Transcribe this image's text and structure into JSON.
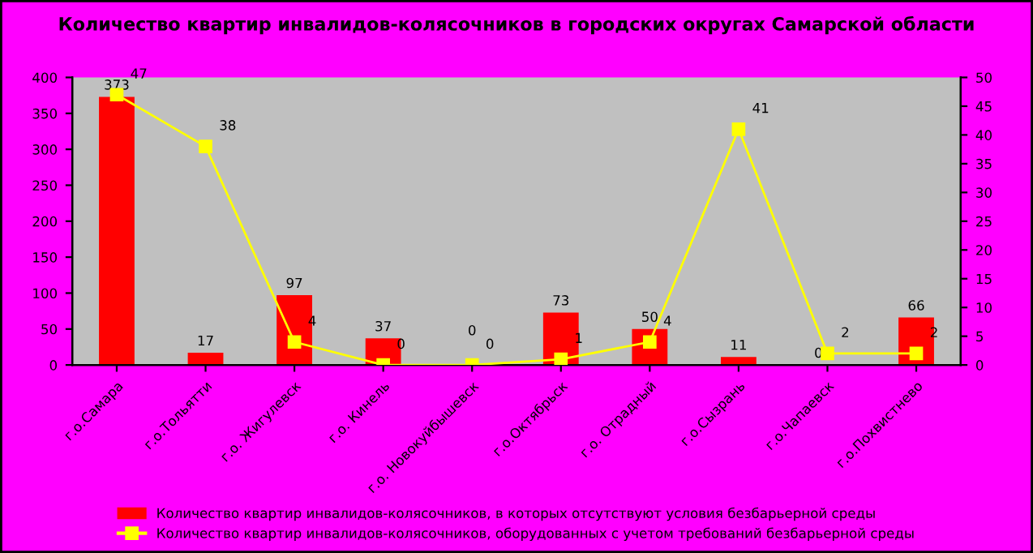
{
  "chart_data": {
    "type": "bar",
    "title": "Количество квартир инвалидов-колясочников в городских округах Самарской области",
    "categories": [
      "г.о.Самара",
      "г.о.Тольятти",
      "г.о. Жигулевск",
      "г.о. Кинель",
      "г.о. Новокуйбышевск",
      "г.о.Октябрьск",
      "г.о. Отрадный",
      "г.о.Сызрань",
      "г.о.Чапаевск",
      "г.о.Похвистнево"
    ],
    "series": [
      {
        "name": "Количество квартир инвалидов-колясочников, в которых отсутствуют условия безбарьерной среды",
        "color": "#ff0000",
        "values": [
          373,
          17,
          97,
          37,
          0,
          73,
          50,
          11,
          0,
          66
        ]
      },
      {
        "name": "Количество квартир инвалидов-колясочников, оборудованных с учетом требований безбарьерной среды",
        "type": "line",
        "axis": "y2",
        "color": "#ffff00",
        "marker": "square",
        "values": [
          47,
          38,
          4,
          0,
          0,
          1,
          4,
          41,
          2,
          2
        ]
      }
    ],
    "data_labels": true,
    "ylim": [
      0,
      400
    ],
    "yticks": [
      0,
      50,
      100,
      150,
      200,
      250,
      300,
      350,
      400
    ],
    "y2lim": [
      0,
      50
    ],
    "y2ticks": [
      0,
      5,
      10,
      15,
      20,
      25,
      30,
      35,
      40,
      45,
      50
    ],
    "grid": false,
    "legend": "bottom"
  }
}
